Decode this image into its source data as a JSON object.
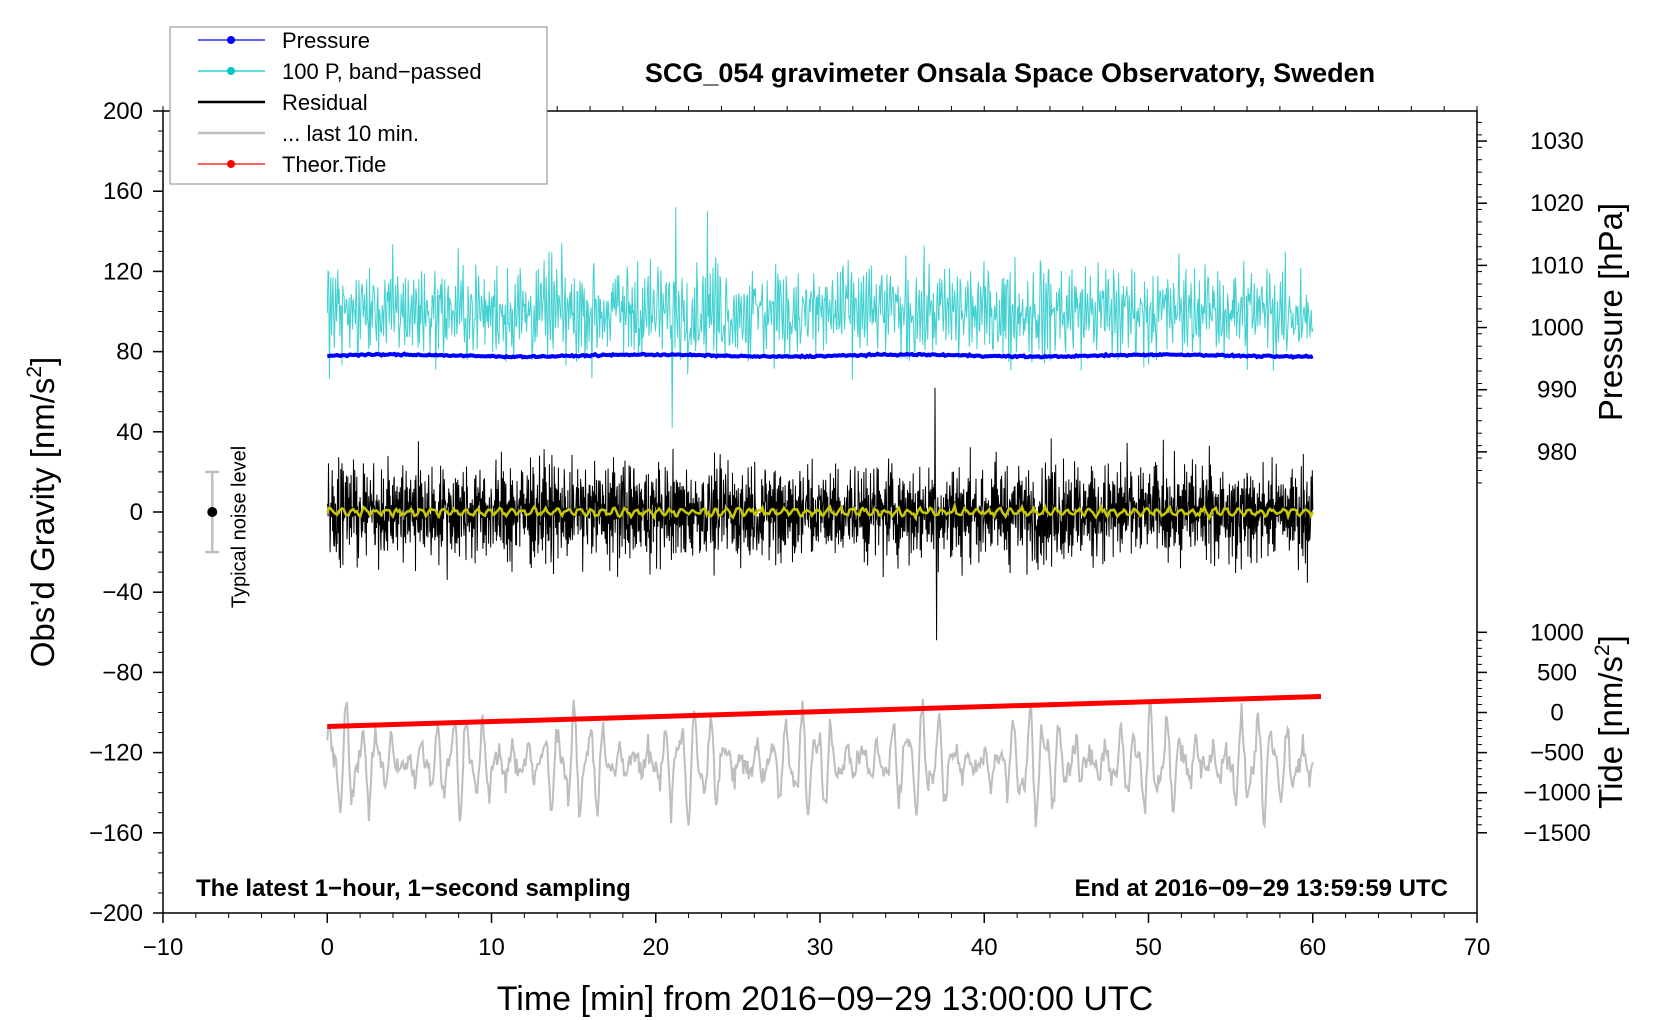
{
  "chart_data": {
    "type": "line",
    "title": "SCG_054 gravimeter Onsala Space Observatory, Sweden",
    "xlabel": "Time [min] from 2016−09−29 13:00:00 UTC",
    "ylabel_left": "Obs’d Gravity [nm/s²]",
    "ylabel_left_main": "Obs’d Gravity [nm/s",
    "ylabel_left_sup": "2",
    "ylabel_left_close": "]",
    "ylabel_right_pressure": "Pressure [hPa]",
    "ylabel_right_tide": "Tide [nm/s²]",
    "ylabel_right_tide_main": "Tide [nm/s",
    "ylabel_right_tide_sup": "2",
    "ylabel_right_tide_close": "]",
    "xlim": [
      -10,
      70
    ],
    "ylim": [
      -200,
      200
    ],
    "xticks": [
      -10,
      0,
      10,
      20,
      30,
      40,
      50,
      60,
      70
    ],
    "xtick_labels": [
      "−10",
      "0",
      "10",
      "20",
      "30",
      "40",
      "50",
      "60",
      "70"
    ],
    "yticks_left": [
      -200,
      -160,
      -120,
      -80,
      -40,
      0,
      40,
      80,
      120,
      160,
      200
    ],
    "ytick_labels_left": [
      "−200",
      "−160",
      "−120",
      "−80",
      "−40",
      "0",
      "40",
      "80",
      "120",
      "160",
      "200"
    ],
    "pressure_axis": {
      "ticks": [
        980,
        990,
        1000,
        1010,
        1020,
        1030
      ],
      "tick_labels": [
        "980",
        "990",
        "1000",
        "1010",
        "1020",
        "1030"
      ],
      "gravity_at_980": 30,
      "gravity_per_hpa": 3.1
    },
    "tide_axis": {
      "ticks": [
        -1500,
        -1000,
        -500,
        0,
        500,
        1000
      ],
      "tick_labels": [
        "−1500",
        "−1000",
        "−500",
        "0",
        "500",
        "1000"
      ],
      "gravity_at_0": -100,
      "gravity_per_unit": 0.04
    },
    "legend": {
      "placement": "top-left",
      "entries": [
        {
          "label": "Pressure",
          "color": "#0000ff",
          "marker": true
        },
        {
          "label": "100 P, band−passed",
          "color": "#00c8c8",
          "marker": true
        },
        {
          "label": "Residual",
          "color": "#000000",
          "marker": false
        },
        {
          "label": "... last 10 min.",
          "color": "#bebebe",
          "marker": false
        },
        {
          "label": "Theor.Tide",
          "color": "#ff0000",
          "marker": true
        }
      ]
    },
    "series": [
      {
        "name": "Pressure",
        "color": "#0000ff",
        "x_range": [
          0,
          60
        ],
        "pressure_hpa_start": 996.5,
        "pressure_hpa_end": 996.6,
        "plotted_center": 78,
        "plotted_noise": 1
      },
      {
        "name": "100 P, band−passed",
        "color": "#40d0d0",
        "x_range": [
          0,
          60
        ],
        "center": 100,
        "amplitude": 20,
        "min": 42,
        "max": 152
      },
      {
        "name": "Residual",
        "color": "#000000",
        "x_range": [
          0,
          60
        ],
        "center": 0,
        "amplitude": 25,
        "min": -64,
        "max": 62
      },
      {
        "name": "Residual smoothed",
        "color": "#c8c800",
        "x_range": [
          0,
          60
        ],
        "center": 0,
        "amplitude": 3
      },
      {
        "name": "... last 10 min.",
        "color": "#bebebe",
        "x_range": [
          0,
          60
        ],
        "center": -125,
        "amplitude": 30,
        "min": -166,
        "max": -79
      },
      {
        "name": "Theor.Tide",
        "color": "#ff0000",
        "x_range": [
          0,
          60.5
        ],
        "tide_start": -175,
        "tide_end": 200
      }
    ],
    "noise_indicator": {
      "label": "Typical noise level",
      "x": -7,
      "center": 0,
      "half_range": 20,
      "color": "#bebebe"
    },
    "annotations": {
      "bottom_left": "The latest 1−hour, 1−second sampling",
      "bottom_right": "End at 2016−09−29 13:59:59 UTC"
    },
    "grid": false
  }
}
